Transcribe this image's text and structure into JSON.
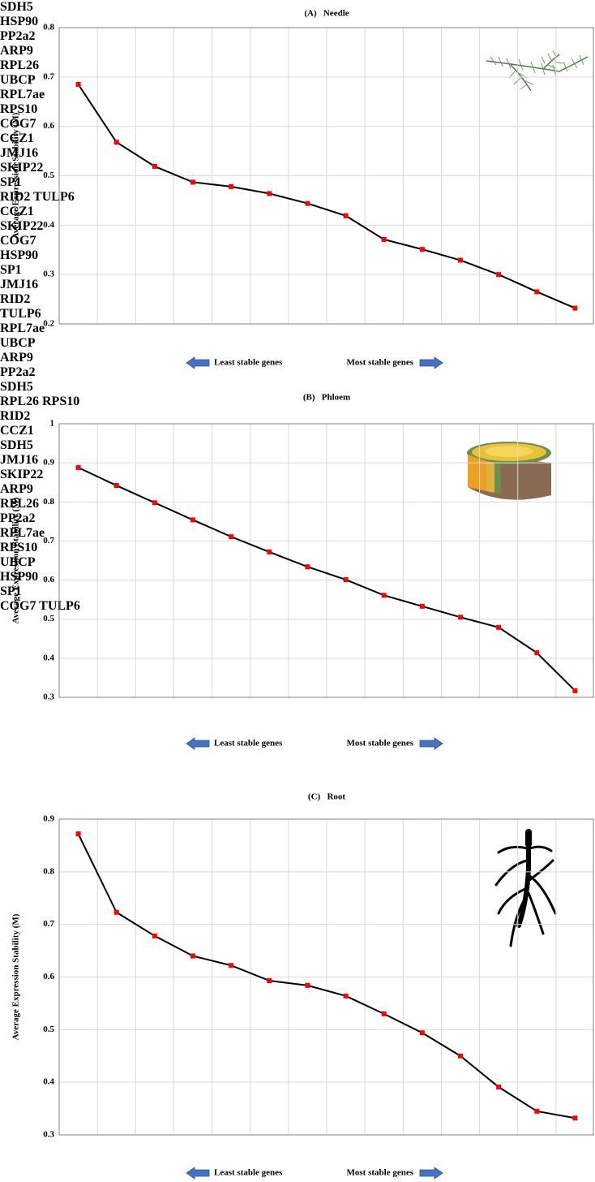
{
  "chart_data": [
    {
      "type": "line",
      "title": "(A)   Needle",
      "y_label": "Average Expression Stability (M)",
      "categories": [
        "SDH5",
        "HSP90",
        "PP2a2",
        "ARP9",
        "RPL26",
        "UBCP",
        "RPL7ae",
        "RPS10",
        "COG7",
        "CCZ1",
        "JMJ16",
        "SKIP22",
        "SP1",
        "RID2\nTULP6"
      ],
      "values": [
        0.685,
        0.568,
        0.519,
        0.487,
        0.478,
        0.464,
        0.444,
        0.419,
        0.371,
        0.351,
        0.329,
        0.3,
        0.265,
        0.232
      ],
      "color": "#000000",
      "marker_color": "#ff0000",
      "ylim": [
        0.2,
        0.8
      ],
      "yticks": [
        0.2,
        0.3,
        0.4,
        0.5,
        0.6,
        0.7,
        0.8
      ],
      "grid": true,
      "annotations": [
        "Least stable genes",
        "Most stable genes"
      ]
    },
    {
      "type": "line",
      "title": "(B)   Phloem",
      "y_label": "Average Expression Stability (M)",
      "categories": [
        "CCZ1",
        "SKIP22",
        "COG7",
        "HSP90",
        "SP1",
        "JMJ16",
        "RID2",
        "TULP6",
        "RPL7ae",
        "UBCP",
        "ARP9",
        "PP2a2",
        "SDH5",
        "RPL26\nRPS10"
      ],
      "values": [
        0.888,
        0.842,
        0.798,
        0.754,
        0.711,
        0.672,
        0.634,
        0.601,
        0.561,
        0.533,
        0.505,
        0.479,
        0.414,
        0.317
      ],
      "color": "#000000",
      "marker_color": "#ff0000",
      "ylim": [
        0.3,
        1
      ],
      "yticks": [
        0.3,
        0.4,
        0.5,
        0.6,
        0.7,
        0.8,
        0.9,
        1
      ],
      "grid": true,
      "annotations": [
        "Least stable genes",
        "Most stable genes"
      ]
    },
    {
      "type": "line",
      "title": "(C)   Root",
      "y_label": "Average Expression Stability (M)",
      "categories": [
        "RID2",
        "CCZ1",
        "SDH5",
        "JMJ16",
        "SKIP22",
        "ARP9",
        "RPL26",
        "PP2a2",
        "RPL7ae",
        "RPS10",
        "UBCP",
        "HSP90",
        "SP1",
        "COG7\nTULP6"
      ],
      "values": [
        0.872,
        0.723,
        0.678,
        0.64,
        0.622,
        0.593,
        0.584,
        0.564,
        0.53,
        0.494,
        0.45,
        0.391,
        0.345,
        0.332
      ],
      "color": "#000000",
      "marker_color": "#ff0000",
      "ylim": [
        0.3,
        0.9
      ],
      "yticks": [
        0.3,
        0.4,
        0.5,
        0.6,
        0.7,
        0.8,
        0.9
      ],
      "grid": true,
      "annotations": [
        "Least stable genes",
        "Most stable genes"
      ]
    }
  ]
}
